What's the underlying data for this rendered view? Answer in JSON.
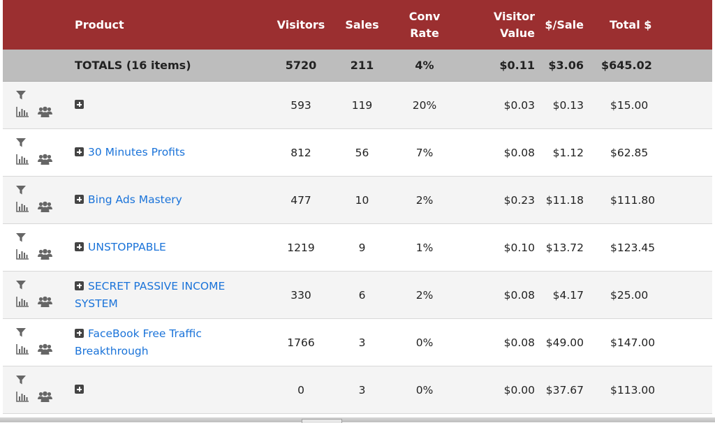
{
  "columns": {
    "product": "Product",
    "visitors": "Visitors",
    "sales": "Sales",
    "conv_line1": "Conv",
    "conv_line2": "Rate",
    "vv_line1": "Visitor",
    "vv_line2": "Value",
    "per_sale": "$/Sale",
    "total": "Total $"
  },
  "totals": {
    "label": "TOTALS (16 items)",
    "visitors": "5720",
    "sales": "211",
    "conv_rate": "4%",
    "visitor_value": "$0.11",
    "per_sale": "$3.06",
    "total": "$645.02"
  },
  "icons": {
    "filter": "filter-icon",
    "stats": "bar-chart-icon",
    "users": "users-icon",
    "expand": "plus-square-icon"
  },
  "rows": [
    {
      "name_line1": "",
      "name_line2": "",
      "visitors": "593",
      "sales": "119",
      "conv_rate": "20%",
      "visitor_value": "$0.03",
      "per_sale": "$0.13",
      "total": "$15.00"
    },
    {
      "name_line1": "30 Minutes Profits",
      "name_line2": "",
      "visitors": "812",
      "sales": "56",
      "conv_rate": "7%",
      "visitor_value": "$0.08",
      "per_sale": "$1.12",
      "total": "$62.85"
    },
    {
      "name_line1": "Bing Ads Mastery",
      "name_line2": "",
      "visitors": "477",
      "sales": "10",
      "conv_rate": "2%",
      "visitor_value": "$0.23",
      "per_sale": "$11.18",
      "total": "$111.80"
    },
    {
      "name_line1": "UNSTOPPABLE",
      "name_line2": "",
      "visitors": "1219",
      "sales": "9",
      "conv_rate": "1%",
      "visitor_value": "$0.10",
      "per_sale": "$13.72",
      "total": "$123.45"
    },
    {
      "name_line1": "SECRET PASSIVE INCOME",
      "name_line2": "SYSTEM",
      "visitors": "330",
      "sales": "6",
      "conv_rate": "2%",
      "visitor_value": "$0.08",
      "per_sale": "$4.17",
      "total": "$25.00"
    },
    {
      "name_line1": "FaceBook Free Traffic",
      "name_line2": "Breakthrough",
      "visitors": "1766",
      "sales": "3",
      "conv_rate": "0%",
      "visitor_value": "$0.08",
      "per_sale": "$49.00",
      "total": "$147.00"
    },
    {
      "name_line1": "",
      "name_line2": "",
      "visitors": "0",
      "sales": "3",
      "conv_rate": "0%",
      "visitor_value": "$0.00",
      "per_sale": "$37.67",
      "total": "$113.00"
    }
  ],
  "colors": {
    "header_bg": "#9b2f30",
    "totals_bg": "#bdbdbd",
    "link": "#1a73d9",
    "row_alt": "#f4f4f4"
  }
}
